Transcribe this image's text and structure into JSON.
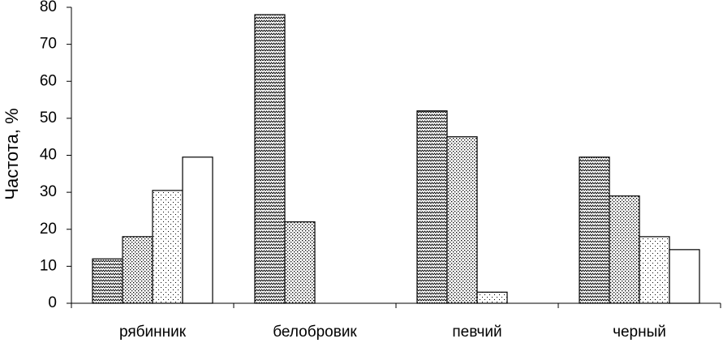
{
  "chart_data": {
    "type": "bar",
    "y_label": "Частота, %",
    "categories": [
      "рябинник",
      "белобровик",
      "певчий",
      "черный"
    ],
    "series": [
      {
        "pattern": "wave",
        "values": [
          12,
          78,
          52,
          39.5
        ]
      },
      {
        "pattern": "dense-dots",
        "values": [
          18,
          22,
          45,
          29
        ]
      },
      {
        "pattern": "sparse-dots",
        "values": [
          30.5,
          null,
          3,
          18
        ]
      },
      {
        "pattern": "none",
        "values": [
          39.5,
          null,
          null,
          14.5
        ]
      }
    ],
    "ylim": [
      0,
      80
    ],
    "yticks": [
      0,
      10,
      20,
      30,
      40,
      50,
      60,
      70,
      80
    ],
    "grid": false
  }
}
